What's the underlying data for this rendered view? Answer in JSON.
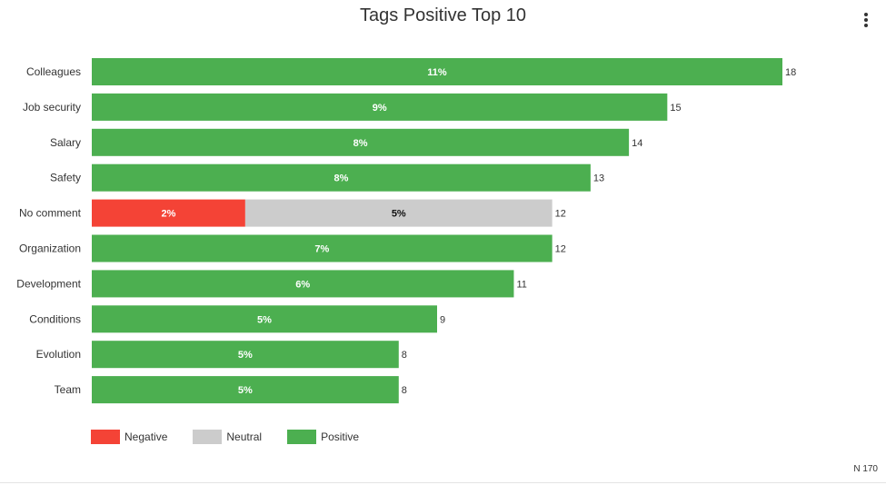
{
  "page": {
    "menu_icon": "vertical-ellipsis-icon",
    "n_text": "N 170"
  },
  "chart_data": {
    "type": "bar",
    "orientation": "horizontal",
    "stacked": true,
    "title": "Tags Positive Top 10",
    "xlabel": "",
    "ylabel": "",
    "grid": false,
    "legend_position": "bottom-left",
    "categories": [
      "Colleagues",
      "Job security",
      "Salary",
      "Safety",
      "No comment",
      "Organization",
      "Development",
      "Conditions",
      "Evolution",
      "Team"
    ],
    "totals": [
      18,
      15,
      14,
      13,
      12,
      12,
      11,
      9,
      8,
      8
    ],
    "series": [
      {
        "name": "Negative",
        "color": "#f44336",
        "values": [
          0,
          0,
          0,
          0,
          4,
          0,
          0,
          0,
          0,
          0
        ],
        "labels": [
          "",
          "",
          "",
          "",
          "2%",
          "",
          "",
          "",
          "",
          ""
        ]
      },
      {
        "name": "Neutral",
        "color": "#cccccc",
        "values": [
          0,
          0,
          0,
          0,
          8,
          0,
          0,
          0,
          0,
          0
        ],
        "labels": [
          "",
          "",
          "",
          "",
          "5%",
          "",
          "",
          "",
          "",
          ""
        ]
      },
      {
        "name": "Positive",
        "color": "#4caf50",
        "values": [
          18,
          15,
          14,
          13,
          0,
          12,
          11,
          9,
          8,
          8
        ],
        "labels": [
          "11%",
          "9%",
          "8%",
          "8%",
          "",
          "7%",
          "6%",
          "5%",
          "5%",
          "5%"
        ]
      }
    ],
    "xlim": [
      0,
      18
    ]
  }
}
